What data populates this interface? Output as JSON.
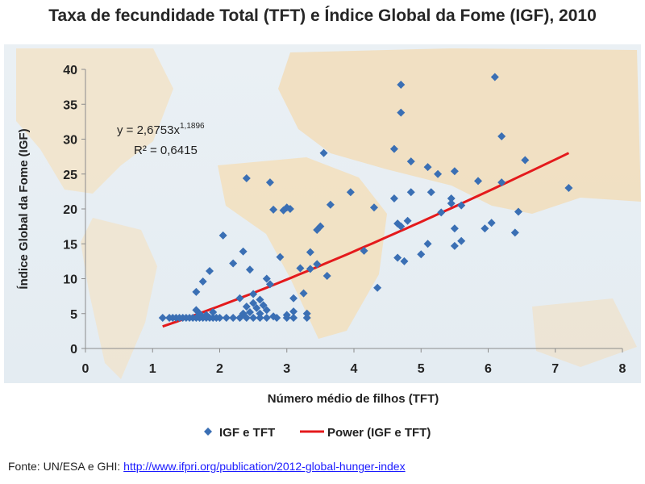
{
  "chart_data": {
    "type": "scatter",
    "title": "Taxa de fecundidade  Total  (TFT) e Índice Global da Fome (IGF), 2010",
    "xlabel": "Número médio de filhos (TFT)",
    "ylabel": "Índice Global da Fome (IGF)",
    "xlim": [
      0,
      8
    ],
    "ylim": [
      0,
      40
    ],
    "xticks": [
      "0",
      "1",
      "2",
      "3",
      "4",
      "5",
      "6",
      "7",
      "8"
    ],
    "yticks": [
      "0",
      "5",
      "10",
      "15",
      "20",
      "25",
      "30",
      "35",
      "40"
    ],
    "legend_position": "bottom",
    "series": [
      {
        "name": "IGF e TFT",
        "color": "#3a6fb4",
        "marker": "diamond",
        "points": [
          [
            1.15,
            4.4
          ],
          [
            1.25,
            4.4
          ],
          [
            1.3,
            4.4
          ],
          [
            1.35,
            4.4
          ],
          [
            1.4,
            4.4
          ],
          [
            1.45,
            4.4
          ],
          [
            1.5,
            4.4
          ],
          [
            1.55,
            4.4
          ],
          [
            1.6,
            4.4
          ],
          [
            1.65,
            4.4
          ],
          [
            1.7,
            4.4
          ],
          [
            1.75,
            4.4
          ],
          [
            1.8,
            4.4
          ],
          [
            1.85,
            4.4
          ],
          [
            1.9,
            4.4
          ],
          [
            1.95,
            4.4
          ],
          [
            2.0,
            4.4
          ],
          [
            2.1,
            4.4
          ],
          [
            2.2,
            4.4
          ],
          [
            2.3,
            4.4
          ],
          [
            2.4,
            4.4
          ],
          [
            2.5,
            4.4
          ],
          [
            2.6,
            4.4
          ],
          [
            2.7,
            4.4
          ],
          [
            2.85,
            4.4
          ],
          [
            3.0,
            4.4
          ],
          [
            3.1,
            4.4
          ],
          [
            3.3,
            4.4
          ],
          [
            1.65,
            5.5
          ],
          [
            1.7,
            5.0
          ],
          [
            1.8,
            4.8
          ],
          [
            1.9,
            5.2
          ],
          [
            2.35,
            5.0
          ],
          [
            2.4,
            6.0
          ],
          [
            2.45,
            5.2
          ],
          [
            2.5,
            6.5
          ],
          [
            2.55,
            5.8
          ],
          [
            2.6,
            5.0
          ],
          [
            2.65,
            6.2
          ],
          [
            2.7,
            5.5
          ],
          [
            2.8,
            4.6
          ],
          [
            3.0,
            4.8
          ],
          [
            3.1,
            5.3
          ],
          [
            3.3,
            5.0
          ],
          [
            2.3,
            7.2
          ],
          [
            2.5,
            7.8
          ],
          [
            2.6,
            7.0
          ],
          [
            2.75,
            9.2
          ],
          [
            3.1,
            7.2
          ],
          [
            3.25,
            7.9
          ],
          [
            1.65,
            8.1
          ],
          [
            1.75,
            9.6
          ],
          [
            1.85,
            11.1
          ],
          [
            2.05,
            16.2
          ],
          [
            2.2,
            12.2
          ],
          [
            2.35,
            13.9
          ],
          [
            2.45,
            11.3
          ],
          [
            2.7,
            10.0
          ],
          [
            2.9,
            13.1
          ],
          [
            3.2,
            11.5
          ],
          [
            3.35,
            11.4
          ],
          [
            3.35,
            13.8
          ],
          [
            3.45,
            12.1
          ],
          [
            3.6,
            10.4
          ],
          [
            2.4,
            24.4
          ],
          [
            2.75,
            23.8
          ],
          [
            2.8,
            19.9
          ],
          [
            2.95,
            19.8
          ],
          [
            3.0,
            20.2
          ],
          [
            3.05,
            20.0
          ],
          [
            3.45,
            17.0
          ],
          [
            3.5,
            17.5
          ],
          [
            3.55,
            28.0
          ],
          [
            3.65,
            20.6
          ],
          [
            3.95,
            22.4
          ],
          [
            4.15,
            14.0
          ],
          [
            4.3,
            20.2
          ],
          [
            4.35,
            8.7
          ],
          [
            4.6,
            28.6
          ],
          [
            4.6,
            21.5
          ],
          [
            4.65,
            17.9
          ],
          [
            4.65,
            13.0
          ],
          [
            4.7,
            17.5
          ],
          [
            4.7,
            37.8
          ],
          [
            4.7,
            33.8
          ],
          [
            4.75,
            12.5
          ],
          [
            4.8,
            18.3
          ],
          [
            4.85,
            26.8
          ],
          [
            4.85,
            22.4
          ],
          [
            5.0,
            13.5
          ],
          [
            5.1,
            26.0
          ],
          [
            5.1,
            15.0
          ],
          [
            5.15,
            22.4
          ],
          [
            5.25,
            25.0
          ],
          [
            5.3,
            19.5
          ],
          [
            5.45,
            21.5
          ],
          [
            5.45,
            20.8
          ],
          [
            5.5,
            17.2
          ],
          [
            5.5,
            25.4
          ],
          [
            5.5,
            14.7
          ],
          [
            5.6,
            20.5
          ],
          [
            5.6,
            15.4
          ],
          [
            5.85,
            24.0
          ],
          [
            5.95,
            17.2
          ],
          [
            6.05,
            18.0
          ],
          [
            6.1,
            38.9
          ],
          [
            6.2,
            30.4
          ],
          [
            6.2,
            23.8
          ],
          [
            6.4,
            16.6
          ],
          [
            6.45,
            19.6
          ],
          [
            6.55,
            27.0
          ],
          [
            7.2,
            23.0
          ]
        ]
      },
      {
        "name": "Power (IGF e TFT)",
        "color": "#e41a1c",
        "type": "power",
        "a": 2.6753,
        "b": 1.1896,
        "x_range": [
          1.15,
          7.2
        ]
      }
    ],
    "annotations": {
      "equation_prefix": "y = 2,6753x",
      "equation_exponent": "1,1896",
      "r_squared": "R² = 0,6415"
    }
  },
  "source": {
    "label": "Fonte: UN/ESA e GHI: ",
    "url_text": "http://www.ifpri.org/publication/2012-global-hunger-index"
  }
}
